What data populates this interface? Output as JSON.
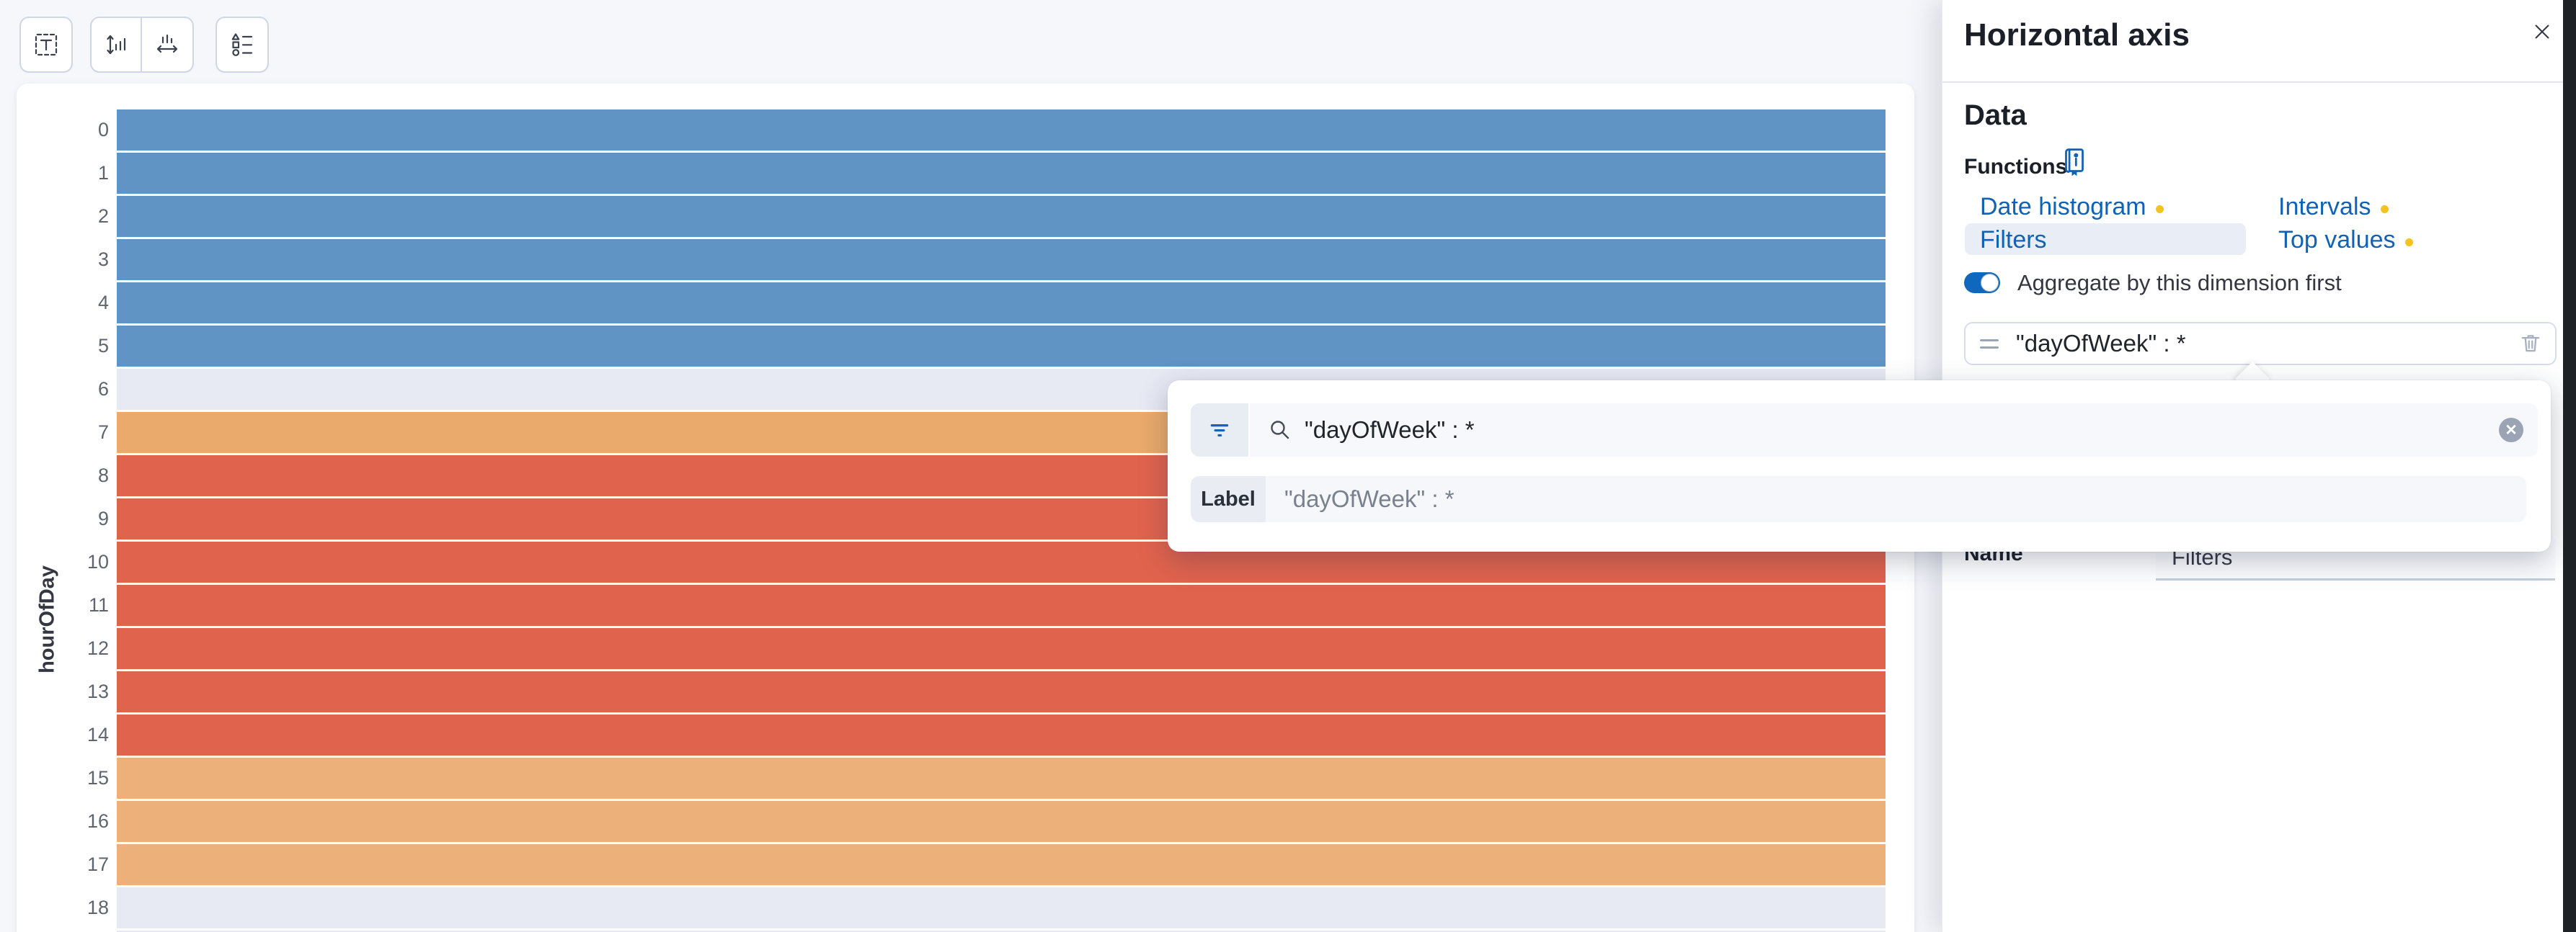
{
  "toolbar": {
    "buttons": [
      {
        "name": "text-properties",
        "icon": "text-select-icon"
      },
      {
        "name": "vertical-axis",
        "icon": "vertical-axis-icon"
      },
      {
        "name": "horizontal-axis",
        "icon": "horizontal-axis-icon"
      },
      {
        "name": "legend",
        "icon": "legend-icon"
      }
    ]
  },
  "chart_data": {
    "type": "heatmap",
    "ylabel": "hourOfDay",
    "y_categories": [
      "0",
      "1",
      "2",
      "3",
      "4",
      "5",
      "6",
      "7",
      "8",
      "9",
      "10",
      "11",
      "12",
      "13",
      "14",
      "15",
      "16",
      "17",
      "18"
    ],
    "rows": [
      {
        "label": "0",
        "color": "#5F94C5"
      },
      {
        "label": "1",
        "color": "#5F94C5"
      },
      {
        "label": "2",
        "color": "#5F94C5"
      },
      {
        "label": "3",
        "color": "#5F94C5"
      },
      {
        "label": "4",
        "color": "#5F94C5"
      },
      {
        "label": "5",
        "color": "#5F94C5"
      },
      {
        "label": "6",
        "color": "#E7EAF3"
      },
      {
        "label": "7",
        "color": "#EAAA6C"
      },
      {
        "label": "8",
        "color": "#E0634E"
      },
      {
        "label": "9",
        "color": "#E0634E"
      },
      {
        "label": "10",
        "color": "#E0634E"
      },
      {
        "label": "11",
        "color": "#E0634E"
      },
      {
        "label": "12",
        "color": "#E0634E"
      },
      {
        "label": "13",
        "color": "#E0634E"
      },
      {
        "label": "14",
        "color": "#E0634E"
      },
      {
        "label": "15",
        "color": "#ECB17A"
      },
      {
        "label": "16",
        "color": "#ECB17A"
      },
      {
        "label": "17",
        "color": "#ECB17A"
      },
      {
        "label": "18",
        "color": "#E7EAF3"
      },
      {
        "label": "",
        "color": "#E7EAF3"
      }
    ],
    "palette": {
      "blue": "#5F94C5",
      "red": "#E0634E",
      "orange": "#ECB17A",
      "empty": "#E7EAF3"
    }
  },
  "flyout": {
    "title": "Horizontal axis",
    "data_heading": "Data",
    "functions_label": "Functions",
    "functions": {
      "items": [
        {
          "label": "Date histogram",
          "dot": true,
          "selected": false
        },
        {
          "label": "Intervals",
          "dot": true,
          "selected": false
        },
        {
          "label": "Filters",
          "dot": false,
          "selected": true
        },
        {
          "label": "Top values",
          "dot": true,
          "selected": false
        }
      ]
    },
    "aggregate_toggle": {
      "checked": true,
      "label": "Aggregate by this dimension first"
    },
    "filter_pill": {
      "query": "\"dayOfWeek\" : *"
    },
    "name_field": {
      "label": "Name",
      "value": "Filters"
    }
  },
  "popover": {
    "search": {
      "value": "\"dayOfWeek\" : *"
    },
    "label_field": {
      "label": "Label",
      "value": "\"dayOfWeek\" : *"
    }
  },
  "colors": {
    "accent_blue": "#1162B4",
    "toggle_blue": "#0F68BE",
    "warning_dot": "#F5C31D",
    "page_background": "#F6F7FB"
  }
}
